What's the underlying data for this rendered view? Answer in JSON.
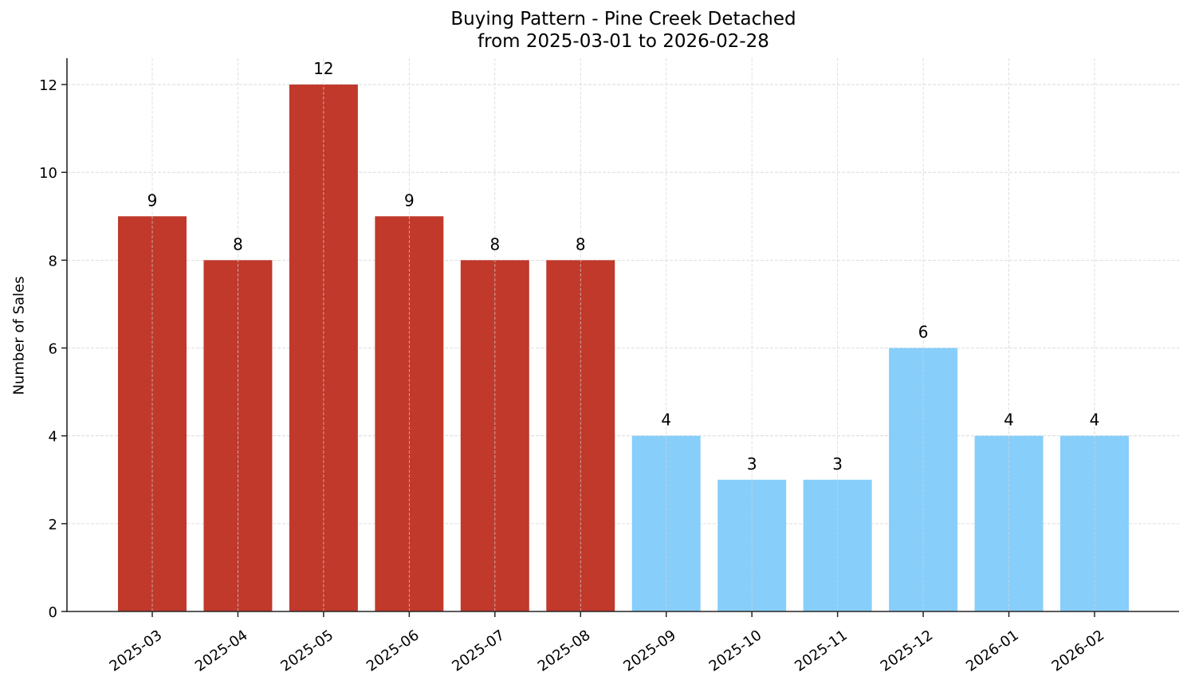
{
  "chart": {
    "title_line1": "Buying Pattern - Pine Creek Detached",
    "title_line2": "from 2025-03-01 to 2026-02-28",
    "ylabel": "Number of Sales",
    "colors": {
      "high": "#c0392b",
      "low": "#87cefa",
      "grid": "#d3d3d3",
      "axis": "#262626"
    }
  },
  "chart_data": {
    "type": "bar",
    "title": "Buying Pattern - Pine Creek Detached\nfrom 2025-03-01 to 2026-02-28",
    "xlabel": "",
    "ylabel": "Number of Sales",
    "categories": [
      "2025-03",
      "2025-04",
      "2025-05",
      "2025-06",
      "2025-07",
      "2025-08",
      "2025-09",
      "2025-10",
      "2025-11",
      "2025-12",
      "2026-01",
      "2026-02"
    ],
    "values": [
      9,
      8,
      12,
      9,
      8,
      8,
      4,
      3,
      3,
      6,
      4,
      4
    ],
    "bar_colors": [
      "#c0392b",
      "#c0392b",
      "#c0392b",
      "#c0392b",
      "#c0392b",
      "#c0392b",
      "#87cefa",
      "#87cefa",
      "#87cefa",
      "#87cefa",
      "#87cefa",
      "#87cefa"
    ],
    "data_labels": true,
    "yticks": [
      0,
      2,
      4,
      6,
      8,
      10,
      12
    ],
    "ylim": [
      0,
      12.6
    ],
    "grid": true,
    "grid_style": "dashed",
    "xtick_rotation": 35,
    "legend": null
  }
}
